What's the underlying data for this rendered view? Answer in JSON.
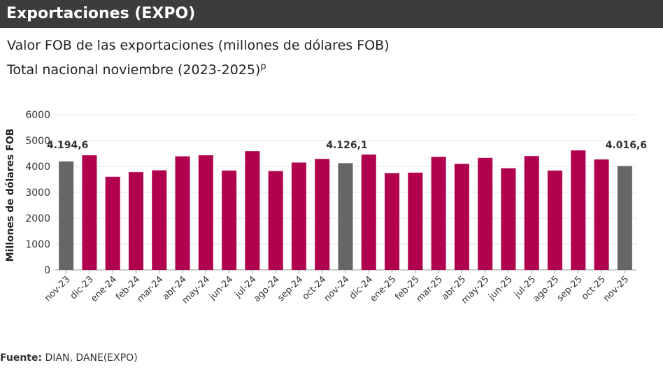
{
  "header": {
    "title": "Exportaciones (EXPO)"
  },
  "subtitle": {
    "line1": "Valor FOB de las exportaciones (millones de dólares FOB)",
    "line2": "Total nacional noviembre (2023-2025)",
    "superscript": "p"
  },
  "footer": {
    "label": "Fuente:",
    "text": " DIAN, DANE(EXPO)"
  },
  "colors": {
    "highlight": "#666666",
    "normal": "#b0004e"
  },
  "chart_data": {
    "type": "bar",
    "ylabel": "Millones de dólares FOB",
    "xlabel": "",
    "ylim": [
      0,
      6000
    ],
    "yticks": [
      0,
      1000,
      2000,
      3000,
      4000,
      5000,
      6000
    ],
    "ytick_labels": [
      "0",
      "1000",
      "2000",
      "3000",
      "4000",
      "5000",
      "6000"
    ],
    "categories": [
      "nov-23",
      "dic-23",
      "ene-24",
      "feb-24",
      "mar-24",
      "abr-24",
      "may-24",
      "jun-24",
      "jul-24",
      "ago-24",
      "sep-24",
      "oct-24",
      "nov-24",
      "dic-24",
      "ene-25",
      "feb-25",
      "mar-25",
      "abr-25",
      "may-25",
      "jun-25",
      "jul-25",
      "ago-25",
      "sep-25",
      "oct-25",
      "nov-25"
    ],
    "values": [
      4194.6,
      4430,
      3600,
      3780,
      3850,
      4390,
      4430,
      3840,
      4590,
      3820,
      4150,
      4290,
      4126.1,
      4460,
      3740,
      3760,
      4370,
      4100,
      4330,
      3930,
      4400,
      3840,
      4620,
      4270,
      4016.6
    ],
    "highlighted": [
      0,
      12,
      24
    ],
    "data_labels": [
      {
        "index": 0,
        "text": "4.194,6"
      },
      {
        "index": 12,
        "text": "4.126,1"
      },
      {
        "index": 24,
        "text": "4.016,6"
      }
    ]
  }
}
